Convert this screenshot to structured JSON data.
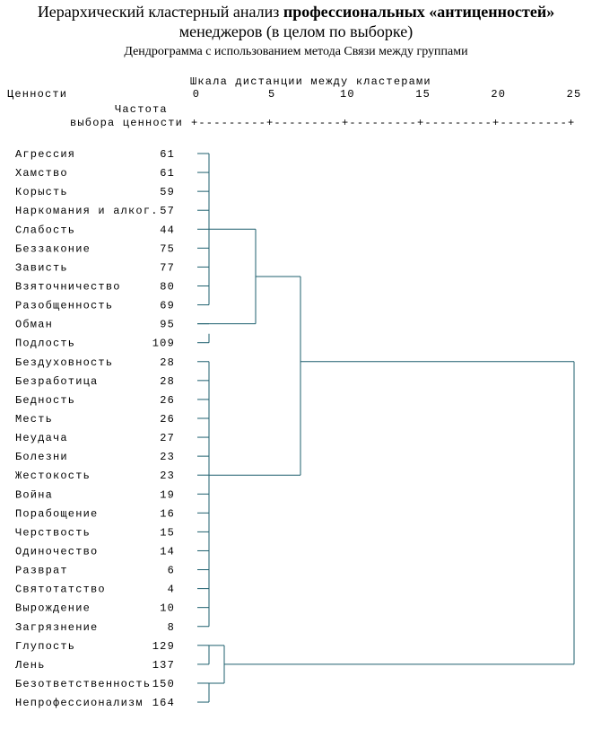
{
  "header": {
    "title_normal": "Иерархический кластерный анализ",
    "title_bold": "профессиональных «антиценностей»",
    "title_line2": "менеджеров (в целом по выборке)",
    "subtitle": "Дендрограмма с использованием метода Связи между группами"
  },
  "scale": {
    "title": "Шкала дистанции между кластерами",
    "ticks": [
      0,
      5,
      10,
      15,
      20,
      25
    ],
    "axis_line": "+---------+---------+---------+---------+---------+"
  },
  "columns": {
    "values": "Ценности",
    "freq_line1": "Частота",
    "freq_line2": "выбора ценности"
  },
  "rows": [
    {
      "label": "Агрессия",
      "freq": 61
    },
    {
      "label": "Хамство",
      "freq": 61
    },
    {
      "label": "Корысть",
      "freq": 59
    },
    {
      "label": "Наркомания и алког.",
      "freq": 57
    },
    {
      "label": "Слабость",
      "freq": 44
    },
    {
      "label": "Беззаконие",
      "freq": 75
    },
    {
      "label": "Зависть",
      "freq": 77
    },
    {
      "label": "Взяточничество",
      "freq": 80
    },
    {
      "label": "Разобщенность",
      "freq": 69
    },
    {
      "label": "Обман",
      "freq": 95
    },
    {
      "label": "Подлость",
      "freq": 109
    },
    {
      "label": "Бездуховность",
      "freq": 28
    },
    {
      "label": "Безработица",
      "freq": 28
    },
    {
      "label": "Бедность",
      "freq": 26
    },
    {
      "label": "Месть",
      "freq": 26
    },
    {
      "label": "Неудача",
      "freq": 27
    },
    {
      "label": "Болезни",
      "freq": 23
    },
    {
      "label": "Жестокость",
      "freq": 23
    },
    {
      "label": "Война",
      "freq": 19
    },
    {
      "label": "Порабощение",
      "freq": 16
    },
    {
      "label": "Черствость",
      "freq": 15
    },
    {
      "label": "Одиночество",
      "freq": 14
    },
    {
      "label": "Разврат",
      "freq": 6
    },
    {
      "label": "Святотатство",
      "freq": 4
    },
    {
      "label": "Вырождение",
      "freq": 10
    },
    {
      "label": "Загрязнение",
      "freq": 8
    },
    {
      "label": "Глупость",
      "freq": 129
    },
    {
      "label": "Лень",
      "freq": 137
    },
    {
      "label": "Безответственность",
      "freq": 150
    },
    {
      "label": "Непрофессионализм",
      "freq": 164
    }
  ]
}
